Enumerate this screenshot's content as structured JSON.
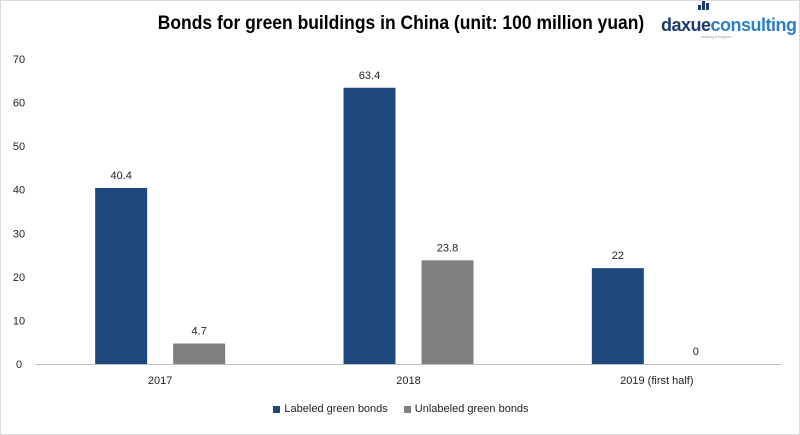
{
  "chart_data": {
    "type": "bar",
    "title": "Bonds for green buildings in China (unit: 100 million yuan)",
    "categories": [
      "2017",
      "2018",
      "2019 (first half)"
    ],
    "series": [
      {
        "name": "Labeled green bonds",
        "values": [
          40.4,
          63.4,
          22
        ],
        "labels": [
          "40.4",
          "63.4",
          "22"
        ],
        "color": "#1f497d"
      },
      {
        "name": "Unlabeled green bonds",
        "values": [
          4.7,
          23.8,
          0
        ],
        "labels": [
          "4.7",
          "23.8",
          "0"
        ],
        "color": "#7f7f7f"
      }
    ],
    "ylim": [
      0,
      70
    ],
    "yticks": [
      "0",
      "10",
      "20",
      "30",
      "40",
      "50",
      "60",
      "70"
    ],
    "grid": false,
    "legend": "bottom-center"
  },
  "logo": {
    "part1": "daxue",
    "part2": "consulting",
    "tagline": "making it happen"
  }
}
